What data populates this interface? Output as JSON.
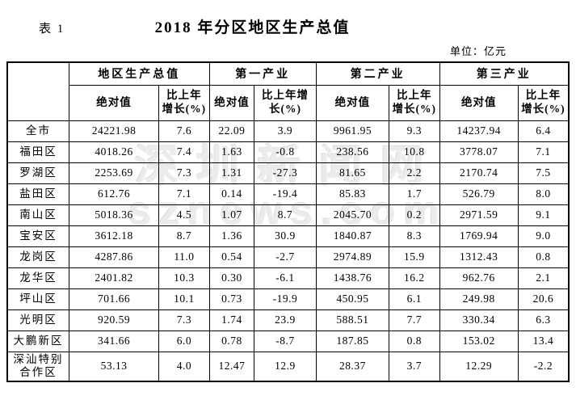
{
  "title": {
    "table_label": "表 1",
    "main": "2018 年分区地区生产总值",
    "unit": "单位：亿元"
  },
  "watermark": {
    "line1": "深圳新闻网",
    "line2": "sznews.com"
  },
  "table": {
    "groups": [
      "地区生产总值",
      "第一产业",
      "第二产业",
      "第三产业"
    ],
    "sub_headers": [
      "绝对值",
      "比上年增长(%)"
    ],
    "rows": [
      {
        "region": "全市",
        "values": [
          "24221.98",
          "7.6",
          "22.09",
          "3.9",
          "9961.95",
          "9.3",
          "14237.94",
          "6.4"
        ]
      },
      {
        "region": "福田区",
        "values": [
          "4018.26",
          "7.4",
          "1.63",
          "-0.8",
          "238.56",
          "10.8",
          "3778.07",
          "7.1"
        ]
      },
      {
        "region": "罗湖区",
        "values": [
          "2253.69",
          "7.3",
          "1.31",
          "-27.3",
          "81.65",
          "2.2",
          "2170.74",
          "7.5"
        ]
      },
      {
        "region": "盐田区",
        "values": [
          "612.76",
          "7.1",
          "0.14",
          "-19.4",
          "85.83",
          "1.7",
          "526.79",
          "8.0"
        ]
      },
      {
        "region": "南山区",
        "values": [
          "5018.36",
          "4.5",
          "1.07",
          "8.7",
          "2045.70",
          "0.2",
          "2971.59",
          "9.1"
        ]
      },
      {
        "region": "宝安区",
        "values": [
          "3612.18",
          "8.7",
          "1.36",
          "30.9",
          "1840.87",
          "8.3",
          "1769.94",
          "9.0"
        ]
      },
      {
        "region": "龙岗区",
        "values": [
          "4287.86",
          "11.0",
          "0.54",
          "-2.7",
          "2974.89",
          "15.9",
          "1312.43",
          "0.8"
        ]
      },
      {
        "region": "龙华区",
        "values": [
          "2401.82",
          "10.3",
          "0.30",
          "-6.1",
          "1438.76",
          "16.2",
          "962.76",
          "2.1"
        ]
      },
      {
        "region": "坪山区",
        "values": [
          "701.66",
          "10.1",
          "0.73",
          "-19.9",
          "450.95",
          "6.1",
          "249.98",
          "20.6"
        ]
      },
      {
        "region": "光明区",
        "values": [
          "920.59",
          "7.3",
          "1.74",
          "23.9",
          "588.51",
          "7.7",
          "330.34",
          "6.3"
        ]
      },
      {
        "region": "大鹏新区",
        "values": [
          "341.66",
          "6.0",
          "0.78",
          "-8.7",
          "187.85",
          "0.8",
          "153.02",
          "13.4"
        ]
      },
      {
        "region": "深汕特别合作区",
        "values": [
          "53.13",
          "4.0",
          "12.47",
          "12.9",
          "28.37",
          "3.7",
          "12.29",
          "-2.2"
        ]
      }
    ]
  }
}
